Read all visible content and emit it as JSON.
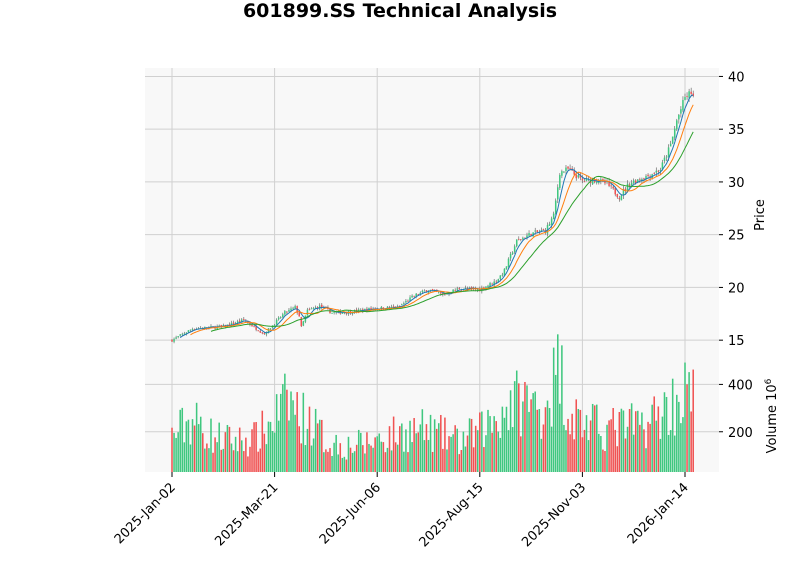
{
  "title": "601899.SS Technical Analysis",
  "colors": {
    "up": "#3fc77f",
    "down": "#f05252",
    "ma_fast": "#1f77b4",
    "ma_mid": "#ff7f0e",
    "ma_slow": "#2ca02c",
    "panel_bg": "#f8f8f8",
    "grid": "#d0d0d0"
  },
  "chart_data": [
    {
      "type": "candlestick",
      "ylabel": "Price",
      "ylim": [
        13.5,
        40.8
      ],
      "yticks": [
        15,
        20,
        25,
        30,
        35,
        40
      ],
      "x_tick_labels": [
        "2025-Jan-02",
        "2025-Mar-21",
        "2025-Jun-06",
        "2025-Aug-15",
        "2025-Nov-03",
        "2026-Jan-14"
      ],
      "x_tick_index": [
        0,
        50,
        100,
        150,
        200,
        250
      ],
      "n_bars": 255,
      "grid": true,
      "close_anchors": [
        [
          0,
          15.0
        ],
        [
          10,
          16.1
        ],
        [
          25,
          16.3
        ],
        [
          35,
          16.9
        ],
        [
          45,
          15.6
        ],
        [
          55,
          17.6
        ],
        [
          60,
          18.1
        ],
        [
          62,
          17.3
        ],
        [
          63,
          16.2
        ],
        [
          66,
          17.8
        ],
        [
          72,
          18.2
        ],
        [
          78,
          17.6
        ],
        [
          88,
          17.7
        ],
        [
          98,
          18.0
        ],
        [
          110,
          18.1
        ],
        [
          118,
          19.2
        ],
        [
          125,
          19.8
        ],
        [
          132,
          19.3
        ],
        [
          140,
          19.9
        ],
        [
          150,
          19.8
        ],
        [
          158,
          20.6
        ],
        [
          162,
          21.6
        ],
        [
          168,
          24.4
        ],
        [
          175,
          25.1
        ],
        [
          182,
          25.4
        ],
        [
          186,
          26.8
        ],
        [
          189,
          30.9
        ],
        [
          193,
          31.2
        ],
        [
          200,
          30.1
        ],
        [
          207,
          30.2
        ],
        [
          212,
          29.8
        ],
        [
          218,
          28.6
        ],
        [
          223,
          29.9
        ],
        [
          232,
          30.6
        ],
        [
          238,
          31.2
        ],
        [
          243,
          33.5
        ],
        [
          246,
          35.8
        ],
        [
          250,
          38.0
        ],
        [
          253,
          38.5
        ],
        [
          255,
          37.6
        ]
      ],
      "ma_note": "three moving averages"
    },
    {
      "type": "bar",
      "ylabel": "Volume  10^6",
      "yticks": [
        200,
        400
      ],
      "ylim": [
        30,
        520
      ],
      "volume_anchors": [
        [
          0,
          180
        ],
        [
          5,
          220
        ],
        [
          10,
          250
        ],
        [
          20,
          180
        ],
        [
          30,
          160
        ],
        [
          40,
          170
        ],
        [
          48,
          230
        ],
        [
          53,
          300
        ],
        [
          58,
          330
        ],
        [
          62,
          270
        ],
        [
          68,
          240
        ],
        [
          75,
          160
        ],
        [
          85,
          140
        ],
        [
          95,
          150
        ],
        [
          100,
          170
        ],
        [
          110,
          190
        ],
        [
          120,
          210
        ],
        [
          130,
          190
        ],
        [
          140,
          160
        ],
        [
          150,
          200
        ],
        [
          158,
          260
        ],
        [
          165,
          320
        ],
        [
          172,
          330
        ],
        [
          180,
          290
        ],
        [
          186,
          410
        ],
        [
          189,
          480
        ],
        [
          193,
          290
        ],
        [
          200,
          240
        ],
        [
          210,
          210
        ],
        [
          220,
          220
        ],
        [
          230,
          230
        ],
        [
          240,
          290
        ],
        [
          247,
          340
        ],
        [
          252,
          380
        ],
        [
          255,
          320
        ]
      ]
    }
  ]
}
